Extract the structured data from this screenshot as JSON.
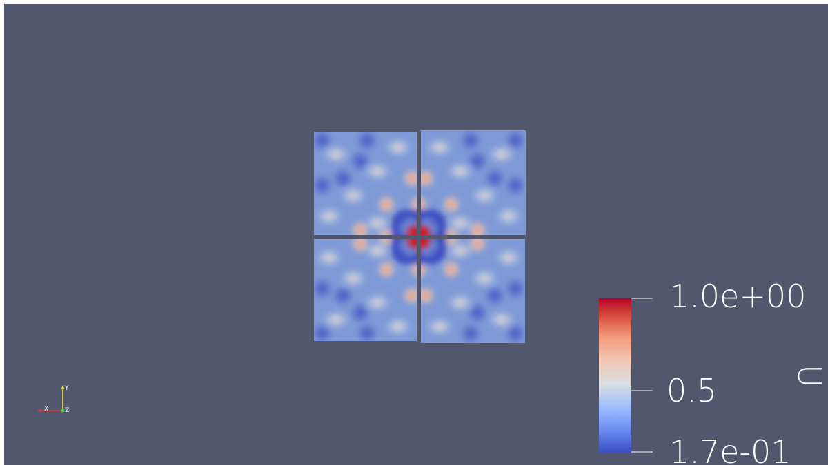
{
  "scene": {
    "background_color": "#52576e",
    "colormap": [
      "#3b4cc0",
      "#688aef",
      "#9abbff",
      "#c9d7f0",
      "#edd1c2",
      "#f7a889",
      "#e26952",
      "#b40426"
    ]
  },
  "scalar_bar": {
    "title": "U",
    "max_label": "1.0e+00",
    "mid_label": "0.5",
    "min_label": "1.7e-01"
  },
  "orientation_axes": {
    "x_label": "X",
    "y_label": "Y",
    "z_label": "Z",
    "x_color": "#e23a3a",
    "y_color": "#e8e23a",
    "z_color": "#3ae23a"
  }
}
